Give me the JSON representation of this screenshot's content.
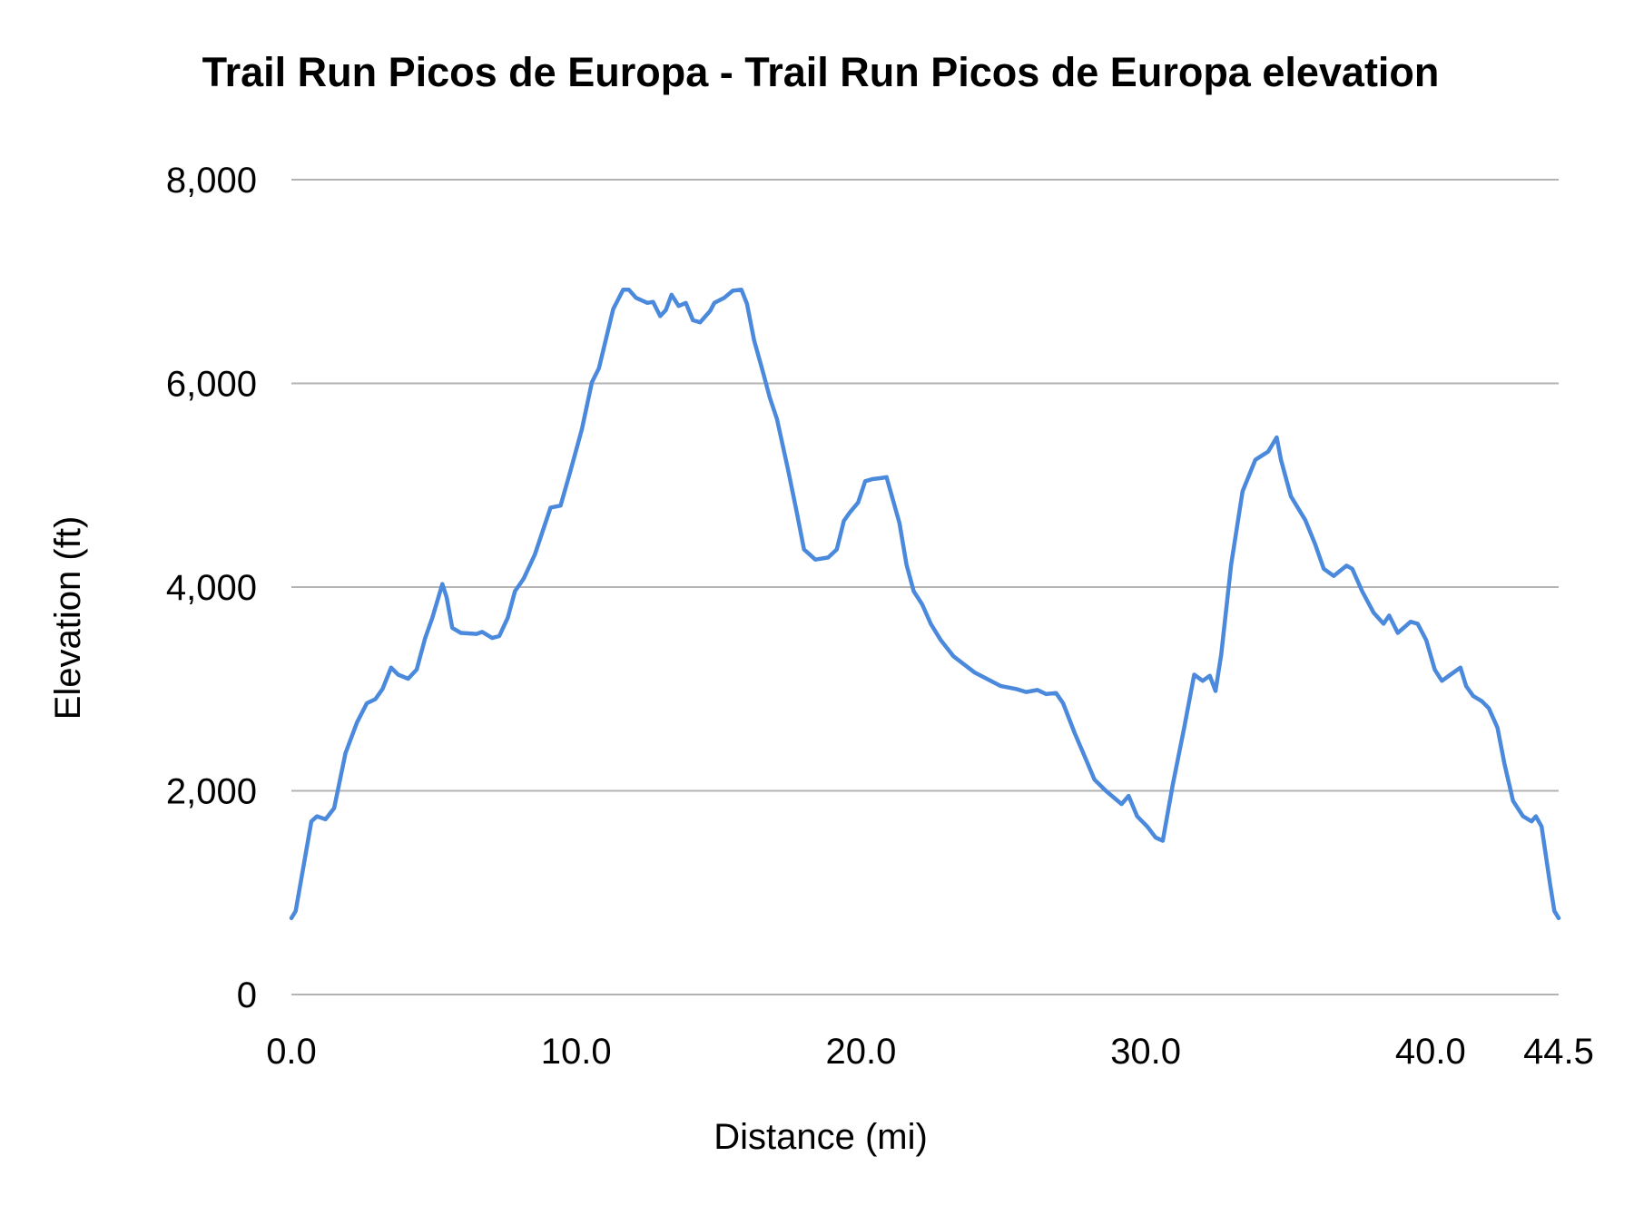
{
  "chart_data": {
    "type": "line",
    "title": "Trail Run Picos de Europa - Trail Run Picos de Europa elevation",
    "xlabel": "Distance (mi)",
    "ylabel": "Elevation (ft)",
    "xlim": [
      0,
      44.5
    ],
    "ylim": [
      0,
      8000
    ],
    "grid": "horizontal",
    "legend": "none",
    "line_color": "#4a89dc",
    "x_ticks": [
      0,
      10,
      20,
      30,
      40,
      44.5
    ],
    "x_tick_labels": [
      "0.0",
      "10.0",
      "20.0",
      "30.0",
      "40.0",
      "44.5"
    ],
    "y_ticks": [
      0,
      2000,
      4000,
      6000,
      8000
    ],
    "y_tick_labels": [
      "0",
      "2,000",
      "4,000",
      "6,000",
      "8,000"
    ],
    "series": [
      {
        "name": "Elevation",
        "points": [
          [
            0,
            750
          ],
          [
            0.15,
            820
          ],
          [
            0.7,
            1700
          ],
          [
            0.9,
            1750
          ],
          [
            1.2,
            1720
          ],
          [
            1.5,
            1830
          ],
          [
            1.9,
            2370
          ],
          [
            2.3,
            2670
          ],
          [
            2.65,
            2860
          ],
          [
            2.95,
            2900
          ],
          [
            3.2,
            3000
          ],
          [
            3.5,
            3210
          ],
          [
            3.75,
            3140
          ],
          [
            4.1,
            3100
          ],
          [
            4.4,
            3190
          ],
          [
            4.7,
            3500
          ],
          [
            4.95,
            3700
          ],
          [
            5.3,
            4030
          ],
          [
            5.45,
            3900
          ],
          [
            5.65,
            3600
          ],
          [
            5.95,
            3550
          ],
          [
            6.5,
            3540
          ],
          [
            6.7,
            3560
          ],
          [
            7.05,
            3500
          ],
          [
            7.3,
            3520
          ],
          [
            7.6,
            3700
          ],
          [
            7.85,
            3960
          ],
          [
            8.15,
            4080
          ],
          [
            8.55,
            4320
          ],
          [
            9.1,
            4780
          ],
          [
            9.45,
            4800
          ],
          [
            9.8,
            5140
          ],
          [
            10.2,
            5550
          ],
          [
            10.55,
            6010
          ],
          [
            10.8,
            6150
          ],
          [
            11.3,
            6730
          ],
          [
            11.65,
            6920
          ],
          [
            11.85,
            6920
          ],
          [
            12.1,
            6840
          ],
          [
            12.5,
            6790
          ],
          [
            12.7,
            6800
          ],
          [
            12.95,
            6660
          ],
          [
            13.15,
            6720
          ],
          [
            13.35,
            6870
          ],
          [
            13.6,
            6760
          ],
          [
            13.85,
            6790
          ],
          [
            14.1,
            6620
          ],
          [
            14.35,
            6600
          ],
          [
            14.7,
            6710
          ],
          [
            14.85,
            6790
          ],
          [
            15.2,
            6840
          ],
          [
            15.5,
            6910
          ],
          [
            15.8,
            6920
          ],
          [
            16.0,
            6780
          ],
          [
            16.25,
            6420
          ],
          [
            16.55,
            6120
          ],
          [
            16.8,
            5860
          ],
          [
            17.05,
            5650
          ],
          [
            17.45,
            5140
          ],
          [
            17.75,
            4730
          ],
          [
            18.0,
            4370
          ],
          [
            18.4,
            4270
          ],
          [
            18.85,
            4290
          ],
          [
            19.15,
            4370
          ],
          [
            19.4,
            4650
          ],
          [
            19.6,
            4730
          ],
          [
            19.9,
            4830
          ],
          [
            20.15,
            5040
          ],
          [
            20.4,
            5060
          ],
          [
            20.7,
            5070
          ],
          [
            20.9,
            5080
          ],
          [
            21.1,
            4880
          ],
          [
            21.35,
            4630
          ],
          [
            21.6,
            4220
          ],
          [
            21.85,
            3960
          ],
          [
            22.15,
            3830
          ],
          [
            22.45,
            3640
          ],
          [
            22.8,
            3480
          ],
          [
            23.25,
            3320
          ],
          [
            24.0,
            3160
          ],
          [
            24.9,
            3030
          ],
          [
            25.45,
            3000
          ],
          [
            25.8,
            2970
          ],
          [
            26.2,
            2990
          ],
          [
            26.5,
            2950
          ],
          [
            26.85,
            2960
          ],
          [
            27.1,
            2860
          ],
          [
            27.5,
            2570
          ],
          [
            27.85,
            2340
          ],
          [
            28.2,
            2110
          ],
          [
            28.6,
            2000
          ],
          [
            29.15,
            1870
          ],
          [
            29.4,
            1950
          ],
          [
            29.7,
            1750
          ],
          [
            30.05,
            1650
          ],
          [
            30.35,
            1540
          ],
          [
            30.6,
            1510
          ],
          [
            30.95,
            2060
          ],
          [
            31.35,
            2620
          ],
          [
            31.7,
            3140
          ],
          [
            32.0,
            3080
          ],
          [
            32.25,
            3130
          ],
          [
            32.45,
            2980
          ],
          [
            32.65,
            3340
          ],
          [
            33.0,
            4220
          ],
          [
            33.4,
            4940
          ],
          [
            33.85,
            5250
          ],
          [
            34.3,
            5330
          ],
          [
            34.6,
            5470
          ],
          [
            34.75,
            5250
          ],
          [
            35.1,
            4890
          ],
          [
            35.6,
            4660
          ],
          [
            35.95,
            4420
          ],
          [
            36.25,
            4180
          ],
          [
            36.6,
            4110
          ],
          [
            37.05,
            4210
          ],
          [
            37.25,
            4180
          ],
          [
            37.6,
            3960
          ],
          [
            38.0,
            3750
          ],
          [
            38.35,
            3640
          ],
          [
            38.55,
            3720
          ],
          [
            38.85,
            3550
          ],
          [
            39.3,
            3660
          ],
          [
            39.55,
            3640
          ],
          [
            39.85,
            3480
          ],
          [
            40.15,
            3190
          ],
          [
            40.4,
            3080
          ],
          [
            40.7,
            3140
          ],
          [
            41.05,
            3210
          ],
          [
            41.25,
            3030
          ],
          [
            41.5,
            2930
          ],
          [
            41.8,
            2880
          ],
          [
            42.05,
            2810
          ],
          [
            42.35,
            2620
          ],
          [
            42.6,
            2260
          ],
          [
            42.9,
            1900
          ],
          [
            43.25,
            1750
          ],
          [
            43.55,
            1700
          ],
          [
            43.7,
            1750
          ],
          [
            43.9,
            1650
          ],
          [
            44.2,
            1080
          ],
          [
            44.35,
            820
          ],
          [
            44.5,
            750
          ]
        ]
      }
    ]
  }
}
